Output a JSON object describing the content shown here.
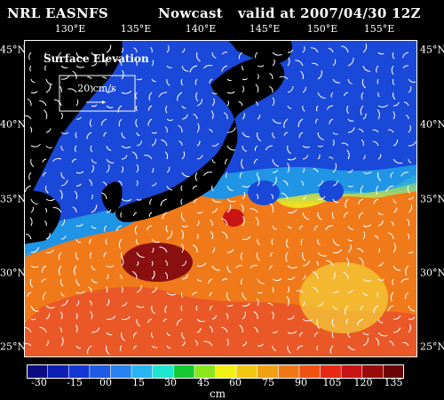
{
  "header": {
    "title": "NRL EASNFS",
    "mode": "Nowcast",
    "valid": "valid at 2007/04/30 12Z"
  },
  "map": {
    "field_label": "Surface Elevation",
    "vector_scale_label": "20 cm/s",
    "lon_labels": [
      "130°E",
      "135°E",
      "140°E",
      "145°E",
      "150°E",
      "155°E"
    ],
    "lat_labels": [
      "45°N",
      "40°N",
      "35°N",
      "30°N",
      "25°N"
    ],
    "ocean_low_color": "#1428c8",
    "ocean_high_color": "#e02010",
    "land_color": "#000000",
    "vector_color": "#ffffff"
  },
  "colorbar": {
    "labels": [
      "-30",
      "-15",
      "00",
      "15",
      "30",
      "45",
      "60",
      "75",
      "90",
      "105",
      "120",
      "135"
    ],
    "unit": "cm",
    "colors": [
      "#0b0b82",
      "#0d1eb4",
      "#1436d2",
      "#1e5ae6",
      "#2882f0",
      "#28b4f0",
      "#1ee6d2",
      "#14c832",
      "#8ce61e",
      "#f0f014",
      "#f0c814",
      "#f0a014",
      "#f07814",
      "#f05014",
      "#e82814",
      "#c81414",
      "#9a0a0a",
      "#6a0505"
    ]
  }
}
